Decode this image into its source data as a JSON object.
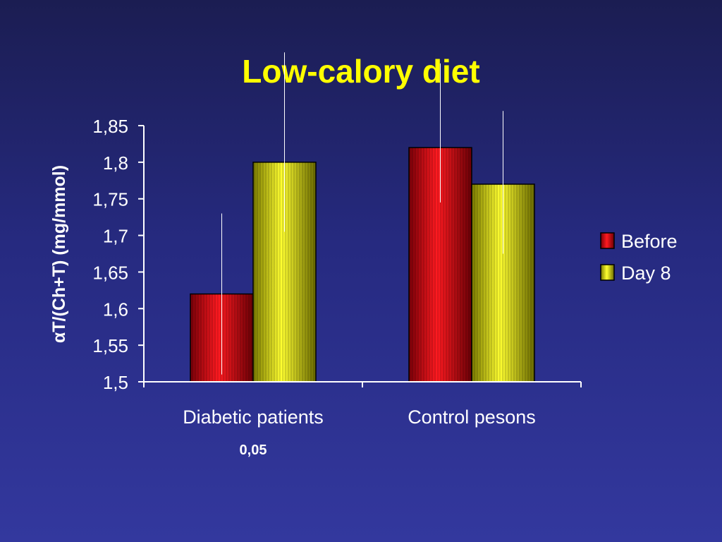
{
  "slide": {
    "title": "Low-calory diet",
    "note": "0,05"
  },
  "colors": {
    "title": "#ffff00",
    "text": "#ffffff",
    "axis": "#ffffff",
    "before": "#e00010",
    "day8": "#e8e800"
  },
  "chart_data": {
    "type": "bar",
    "title": "Low-calory diet",
    "ylabel": "αT/(Ch+T) (mg/mmol)",
    "xlabel": "",
    "categories": [
      "Diabetic patients",
      "Control pesons"
    ],
    "series": [
      {
        "name": "Before",
        "values": [
          1.62,
          1.82
        ],
        "err_low": [
          1.51,
          1.745
        ],
        "err_high": [
          1.73,
          1.935
        ]
      },
      {
        "name": "Day 8",
        "values": [
          1.8,
          1.77
        ],
        "err_low": [
          1.705,
          1.675
        ],
        "err_high": [
          1.95,
          1.87
        ]
      }
    ],
    "ylim": [
      1.5,
      1.85
    ],
    "yticks": [
      "1,5",
      "1,55",
      "1,6",
      "1,65",
      "1,7",
      "1,75",
      "1,8",
      "1,85"
    ],
    "ytick_values": [
      1.5,
      1.55,
      1.6,
      1.65,
      1.7,
      1.75,
      1.8,
      1.85
    ],
    "legend": [
      "Before",
      "Day 8"
    ],
    "legend_position": "right",
    "grid": false
  }
}
